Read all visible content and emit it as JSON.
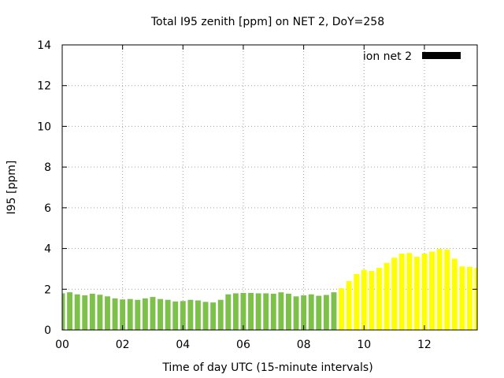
{
  "chart_data": {
    "type": "bar",
    "title": "Total I95 zenith [ppm] on NET 2, DoY=258",
    "xlabel": "Time of day UTC (15-minute intervals)",
    "ylabel": "I95 [ppm]",
    "xlim": [
      0,
      13.75
    ],
    "ylim": [
      0,
      14
    ],
    "x_ticks": [
      0,
      2,
      4,
      6,
      8,
      10,
      12
    ],
    "x_tick_labels": [
      "00",
      "02",
      "04",
      "06",
      "08",
      "10",
      "12"
    ],
    "y_ticks": [
      0,
      2,
      4,
      6,
      8,
      10,
      12,
      14
    ],
    "y_tick_labels": [
      "0",
      "2",
      "4",
      "6",
      "8",
      "10",
      "12",
      "14"
    ],
    "grid": true,
    "legend": {
      "position": "top-right",
      "label": "ion net 2",
      "color": "#000000"
    },
    "colors": {
      "before": "#7dc14a",
      "after": "#ffff00"
    },
    "color_split_x": 9.25,
    "interval_hours": 0.25,
    "bar_width_hours": 0.18,
    "values": [
      1.8,
      1.85,
      1.75,
      1.7,
      1.78,
      1.73,
      1.65,
      1.55,
      1.5,
      1.52,
      1.48,
      1.55,
      1.62,
      1.52,
      1.48,
      1.4,
      1.42,
      1.48,
      1.45,
      1.38,
      1.35,
      1.48,
      1.75,
      1.8,
      1.82,
      1.82,
      1.8,
      1.8,
      1.78,
      1.85,
      1.78,
      1.65,
      1.7,
      1.75,
      1.68,
      1.72,
      1.85,
      2.05,
      2.4,
      2.75,
      2.95,
      2.9,
      3.05,
      3.3,
      3.55,
      3.75,
      3.78,
      3.6,
      3.75,
      3.85,
      3.98,
      3.95,
      3.5,
      3.12,
      3.1,
      3.05
    ]
  }
}
